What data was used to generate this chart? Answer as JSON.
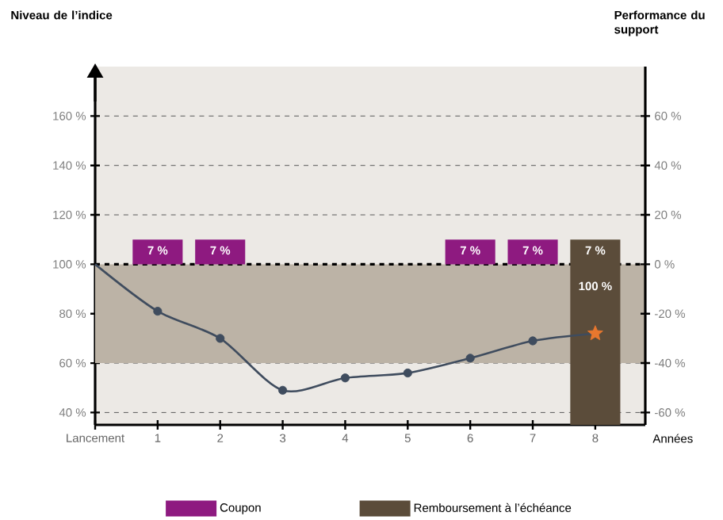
{
  "chart_data": {
    "type": "line",
    "ylabel": "Niveau de l’indice",
    "y2label": "Performance du support",
    "xlabel": "Années",
    "xlim": [
      0,
      8.8
    ],
    "xticks": [
      {
        "value": 0,
        "label": "Lancement"
      },
      1,
      2,
      3,
      4,
      5,
      6,
      7,
      8
    ],
    "ylim": [
      35,
      180
    ],
    "yticks": [
      {
        "value": 40,
        "label": "40 %"
      },
      {
        "value": 60,
        "label": "60 %"
      },
      {
        "value": 80,
        "label": "80 %"
      },
      {
        "value": 100,
        "label": "100 %"
      },
      {
        "value": 120,
        "label": "120 %"
      },
      {
        "value": 140,
        "label": "140 %"
      },
      {
        "value": 160,
        "label": "160 %"
      }
    ],
    "y2lim": [
      -65,
      80
    ],
    "y2ticks": [
      {
        "value": -60,
        "label": "-60 %"
      },
      {
        "value": -40,
        "label": "-40 %"
      },
      {
        "value": -20,
        "label": "-20 %"
      },
      {
        "value": 0,
        "label": "0 %"
      },
      {
        "value": 20,
        "label": "20 %"
      },
      {
        "value": 40,
        "label": "40 %"
      },
      {
        "value": 60,
        "label": "60 %"
      }
    ],
    "grid": "y",
    "legend": "bottom",
    "bands": [
      {
        "axis": "y",
        "from": 60,
        "to": 100,
        "color": "#bcb3a6"
      }
    ],
    "ref_lines": [
      {
        "axis": "y",
        "value": 100,
        "color": "#000000",
        "line_style": "dashed"
      }
    ],
    "annotations": [
      {
        "text": "7 %",
        "x": 1,
        "y": 110
      },
      {
        "text": "7 %",
        "x": 2,
        "y": 110
      },
      {
        "text": "7 %",
        "x": 6,
        "y": 110
      },
      {
        "text": "7 %",
        "x": 7,
        "y": 110
      },
      {
        "text": "7 %",
        "x": 8,
        "y": 110
      },
      "100 %"
    ],
    "series": [
      {
        "name": "Coupon",
        "type": "bar",
        "color": "#8e1a80",
        "x": [
          1,
          2,
          6,
          7
        ],
        "base": [
          100,
          100,
          100,
          100
        ],
        "values": [
          10,
          10,
          10,
          10
        ]
      },
      {
        "name": "Remboursement à l’échéance",
        "type": "bar",
        "color": "#5b4c3a",
        "x": [
          8
        ],
        "base": [
          35
        ],
        "values": [
          75
        ]
      },
      {
        "color": "#3f4c5e",
        "x": [
          0,
          1,
          2,
          3,
          4,
          5,
          6,
          7,
          8
        ],
        "values": [
          100,
          81,
          70,
          49,
          54,
          56,
          62,
          69,
          72
        ],
        "marker": "none"
      },
      {
        "type": "scatter",
        "color": "#3f4c5e",
        "x": [
          1,
          2,
          3,
          4,
          5,
          6,
          7
        ],
        "values": [
          81,
          70,
          49,
          54,
          56,
          62,
          69
        ],
        "marker": "circle"
      },
      {
        "type": "scatter",
        "color": "#e8772e",
        "x": [
          8
        ],
        "values": [
          72
        ],
        "marker": "star"
      }
    ]
  }
}
